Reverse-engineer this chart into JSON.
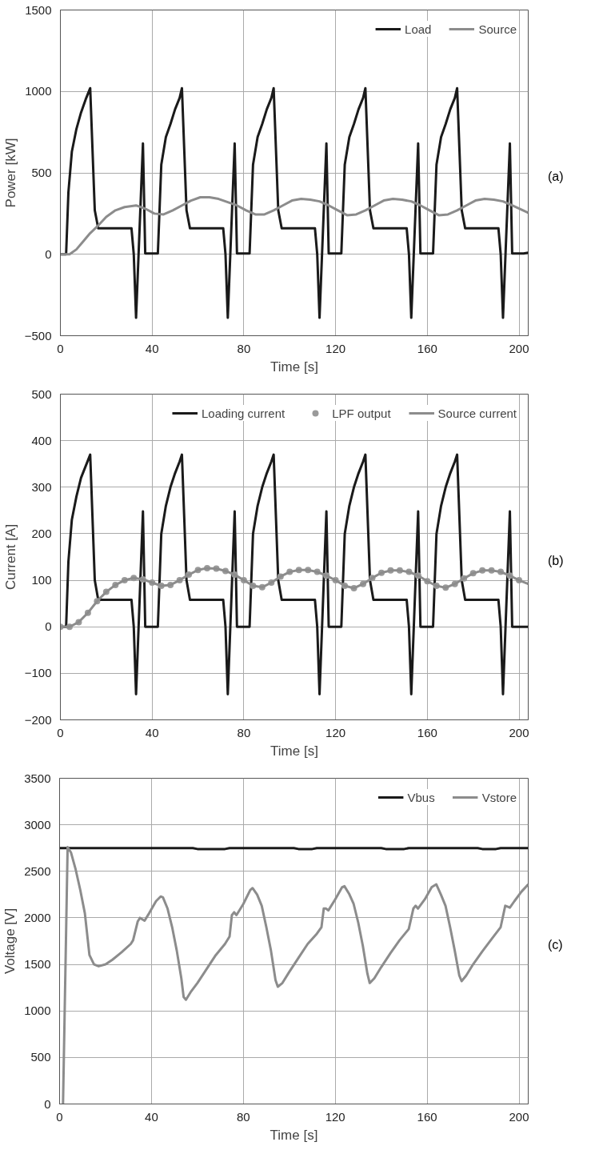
{
  "chart_data": [
    {
      "type": "line",
      "xlabel": "Time [s]",
      "ylabel": "Power [kW]",
      "xlim": [
        0,
        204
      ],
      "xticks": [
        0,
        40,
        80,
        120,
        160,
        200
      ],
      "ylim": [
        -500,
        1500
      ],
      "yticks": [
        -500,
        0,
        500,
        1000,
        1500
      ],
      "grid": true,
      "legend": "top right",
      "annotations": [
        "(a)"
      ],
      "series": [
        {
          "name": "Load",
          "color": "#1a1a1a",
          "x": [
            0,
            2.5,
            3.5,
            5,
            7,
            9,
            11,
            13,
            15,
            16.5,
            31,
            32,
            33,
            36,
            37,
            42.5,
            44,
            46,
            48,
            50,
            52,
            53,
            55,
            56.5,
            71,
            72,
            73,
            76,
            77,
            82.5,
            84,
            86,
            88,
            90,
            92,
            93,
            95,
            96.5,
            111,
            112,
            113,
            116,
            117,
            122.5,
            124,
            126,
            128,
            130,
            132,
            133,
            135,
            136.5,
            151,
            152,
            153,
            156,
            157,
            162.5,
            164,
            166,
            168,
            170,
            172,
            173,
            175,
            176.5,
            191,
            192,
            193,
            196,
            197,
            202,
            204
          ],
          "values": [
            0,
            0,
            380,
            630,
            770,
            870,
            950,
            1020,
            270,
            160,
            160,
            0,
            -390,
            680,
            5,
            5,
            550,
            720,
            800,
            890,
            960,
            1020,
            270,
            160,
            160,
            0,
            -390,
            680,
            5,
            5,
            550,
            720,
            800,
            890,
            960,
            1020,
            270,
            160,
            160,
            0,
            -390,
            680,
            5,
            5,
            550,
            720,
            800,
            890,
            960,
            1020,
            270,
            160,
            160,
            0,
            -390,
            680,
            5,
            5,
            550,
            720,
            800,
            890,
            960,
            1020,
            270,
            160,
            160,
            0,
            -390,
            680,
            5,
            5,
            10
          ]
        },
        {
          "name": "Source",
          "color": "#8c8c8c",
          "x": [
            0,
            4,
            7,
            10,
            13,
            16,
            20,
            24,
            28,
            33,
            37,
            41,
            45,
            49,
            53,
            57,
            61,
            65,
            69,
            73,
            77,
            81,
            85,
            89,
            93,
            97,
            101,
            105,
            109,
            113,
            117,
            121,
            125,
            129,
            133,
            137,
            141,
            145,
            149,
            153,
            157,
            161,
            165,
            169,
            173,
            177,
            181,
            185,
            189,
            193,
            197,
            201,
            204
          ],
          "values": [
            0,
            0,
            30,
            80,
            130,
            170,
            230,
            270,
            290,
            300,
            280,
            250,
            245,
            270,
            300,
            330,
            350,
            350,
            340,
            320,
            300,
            270,
            245,
            245,
            270,
            300,
            330,
            340,
            335,
            325,
            300,
            270,
            240,
            245,
            270,
            300,
            330,
            340,
            335,
            325,
            300,
            270,
            240,
            245,
            270,
            300,
            330,
            340,
            335,
            325,
            300,
            275,
            255
          ]
        }
      ]
    },
    {
      "type": "line",
      "xlabel": "Time [s]",
      "ylabel": "Current [A]",
      "xlim": [
        0,
        204
      ],
      "xticks": [
        0,
        40,
        80,
        120,
        160,
        200
      ],
      "ylim": [
        -200,
        500
      ],
      "yticks": [
        -200,
        -100,
        0,
        100,
        200,
        300,
        400,
        500
      ],
      "grid": true,
      "legend": "top right",
      "annotations": [
        "(b)"
      ],
      "series": [
        {
          "name": "Loading current",
          "color": "#1a1a1a",
          "x": [
            0,
            2.5,
            3.5,
            5,
            7,
            9,
            11,
            13,
            15,
            16.5,
            31,
            32,
            33,
            36,
            37,
            42.5,
            44,
            46,
            48,
            50,
            52,
            53,
            55,
            56.5,
            71,
            72,
            73,
            76,
            77,
            82.5,
            84,
            86,
            88,
            90,
            92,
            93,
            95,
            96.5,
            111,
            112,
            113,
            116,
            117,
            122.5,
            124,
            126,
            128,
            130,
            132,
            133,
            135,
            136.5,
            151,
            152,
            153,
            156,
            157,
            162.5,
            164,
            166,
            168,
            170,
            172,
            173,
            175,
            176.5,
            191,
            192,
            193,
            196,
            197,
            204
          ],
          "values": [
            0,
            0,
            140,
            230,
            280,
            320,
            345,
            370,
            100,
            58,
            58,
            0,
            -145,
            248,
            0,
            0,
            200,
            260,
            300,
            330,
            355,
            370,
            100,
            58,
            58,
            0,
            -145,
            248,
            0,
            0,
            200,
            260,
            300,
            330,
            355,
            370,
            100,
            58,
            58,
            0,
            -145,
            248,
            0,
            0,
            200,
            260,
            300,
            330,
            355,
            370,
            100,
            58,
            58,
            0,
            -145,
            248,
            0,
            0,
            200,
            260,
            300,
            330,
            355,
            370,
            100,
            58,
            58,
            0,
            -145,
            248,
            0,
            0
          ]
        },
        {
          "name": "LPF output",
          "type": "scatter",
          "marker": "circle",
          "color": "#9a9a9a",
          "x": [
            0,
            4,
            8,
            12,
            16,
            20,
            24,
            28,
            32,
            36,
            40,
            44,
            48,
            52,
            56,
            60,
            64,
            68,
            72,
            76,
            80,
            84,
            88,
            92,
            96,
            100,
            104,
            108,
            112,
            116,
            120,
            124,
            128,
            132,
            136,
            140,
            144,
            148,
            152,
            156,
            160,
            164,
            168,
            172,
            176,
            180,
            184,
            188,
            192,
            196,
            200
          ],
          "values": [
            0,
            0,
            10,
            30,
            55,
            75,
            90,
            100,
            105,
            102,
            95,
            88,
            90,
            100,
            112,
            122,
            126,
            125,
            120,
            112,
            100,
            88,
            85,
            95,
            108,
            118,
            122,
            122,
            118,
            110,
            100,
            88,
            83,
            92,
            105,
            116,
            121,
            121,
            118,
            110,
            98,
            88,
            84,
            92,
            104,
            115,
            121,
            121,
            118,
            110,
            100
          ]
        },
        {
          "name": "Source current",
          "color": "#8c8c8c",
          "x": [
            0,
            4,
            8,
            12,
            16,
            20,
            24,
            28,
            32,
            36,
            40,
            44,
            48,
            52,
            56,
            60,
            64,
            68,
            72,
            76,
            80,
            84,
            88,
            92,
            96,
            100,
            104,
            108,
            112,
            116,
            120,
            124,
            128,
            132,
            136,
            140,
            144,
            148,
            152,
            156,
            160,
            164,
            168,
            172,
            176,
            180,
            184,
            188,
            192,
            196,
            200,
            204
          ],
          "values": [
            0,
            0,
            10,
            30,
            55,
            75,
            90,
            100,
            105,
            102,
            95,
            88,
            90,
            100,
            112,
            122,
            126,
            125,
            120,
            112,
            100,
            88,
            85,
            95,
            108,
            118,
            122,
            122,
            118,
            110,
            100,
            88,
            83,
            92,
            105,
            116,
            121,
            121,
            118,
            110,
            98,
            88,
            84,
            92,
            104,
            115,
            121,
            121,
            118,
            110,
            100,
            92
          ]
        }
      ]
    },
    {
      "type": "line",
      "xlabel": "Time [s]",
      "ylabel": "Voltage [V]",
      "xlim": [
        0,
        204
      ],
      "xticks": [
        0,
        40,
        80,
        120,
        160,
        200
      ],
      "ylim": [
        0,
        3500
      ],
      "yticks": [
        0,
        500,
        1000,
        1500,
        2000,
        2500,
        3000,
        3500
      ],
      "grid": true,
      "legend": "top right",
      "annotations": [
        "(c)"
      ],
      "series": [
        {
          "name": "Vbus",
          "color": "#1a1a1a",
          "x": [
            0,
            58,
            60,
            72,
            74,
            102,
            104,
            110,
            112,
            140,
            142,
            150,
            152,
            182,
            184,
            190,
            192,
            204
          ],
          "values": [
            2750,
            2750,
            2740,
            2740,
            2750,
            2750,
            2740,
            2740,
            2750,
            2750,
            2740,
            2740,
            2750,
            2750,
            2740,
            2740,
            2750,
            2750
          ]
        },
        {
          "name": "Vstore",
          "color": "#8c8c8c",
          "x": [
            1.5,
            3.5,
            5,
            7,
            9,
            11,
            13,
            15,
            17,
            20,
            23,
            27,
            31,
            32,
            34,
            35,
            37,
            39,
            42,
            44,
            45,
            47,
            49,
            51,
            53,
            54,
            55,
            57,
            60,
            64,
            68,
            72,
            74,
            75,
            76,
            77,
            80,
            83,
            84,
            86,
            88,
            90,
            92,
            94,
            95,
            97,
            100,
            104,
            108,
            112,
            114,
            115,
            116,
            117,
            120,
            123,
            124,
            126,
            128,
            130,
            132,
            134,
            135,
            137,
            140,
            144,
            148,
            152,
            154,
            155,
            156,
            159,
            162,
            164,
            166,
            168,
            170,
            172,
            174,
            175,
            177,
            180,
            184,
            188,
            192,
            194,
            195,
            196,
            198,
            201,
            204
          ],
          "values": [
            0,
            2760,
            2700,
            2520,
            2300,
            2050,
            1600,
            1500,
            1480,
            1500,
            1550,
            1630,
            1720,
            1760,
            1960,
            2000,
            1970,
            2050,
            2180,
            2230,
            2220,
            2100,
            1900,
            1650,
            1350,
            1150,
            1120,
            1200,
            1300,
            1450,
            1600,
            1720,
            1800,
            2030,
            2060,
            2030,
            2150,
            2300,
            2320,
            2250,
            2130,
            1900,
            1650,
            1330,
            1260,
            1300,
            1420,
            1570,
            1720,
            1830,
            1900,
            2100,
            2100,
            2080,
            2200,
            2330,
            2340,
            2260,
            2150,
            1950,
            1700,
            1400,
            1300,
            1350,
            1470,
            1620,
            1760,
            1880,
            2100,
            2130,
            2100,
            2200,
            2330,
            2360,
            2250,
            2130,
            1900,
            1650,
            1380,
            1320,
            1380,
            1500,
            1640,
            1770,
            1900,
            2130,
            2120,
            2110,
            2180,
            2280,
            2360
          ]
        }
      ]
    }
  ]
}
